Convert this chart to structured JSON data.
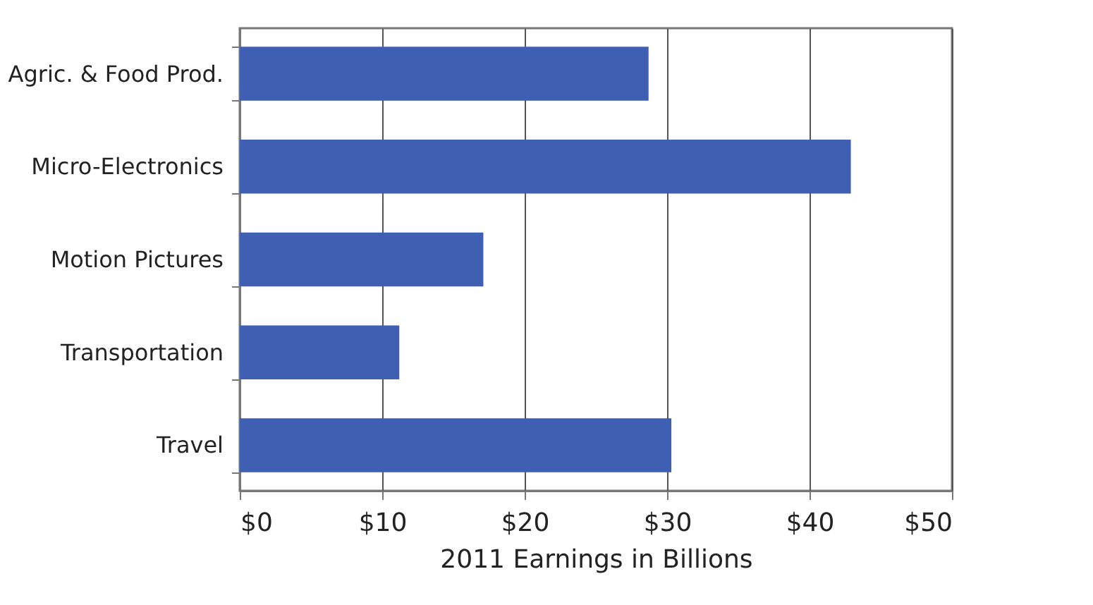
{
  "chart_data": {
    "type": "bar",
    "orientation": "horizontal",
    "xlabel": "2011 Earnings in Billions",
    "categories": [
      "Agric. & Food Prod.",
      "Micro-Electronics",
      "Motion Pictures",
      "Transportation",
      "Travel"
    ],
    "values": [
      28.7,
      42.9,
      17.1,
      11.2,
      30.3
    ],
    "color": "#3f5fb2",
    "xlim": [
      0,
      50
    ],
    "xticks": [
      {
        "value": 0,
        "label": "$0"
      },
      {
        "value": 10,
        "label": "$10"
      },
      {
        "value": 20,
        "label": "$20"
      },
      {
        "value": 30,
        "label": "$30"
      },
      {
        "value": 40,
        "label": "$40"
      },
      {
        "value": 50,
        "label": "$50"
      }
    ],
    "grid": "x"
  }
}
